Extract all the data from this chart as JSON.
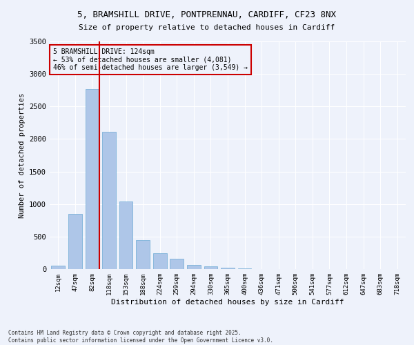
{
  "title_line1": "5, BRAMSHILL DRIVE, PONTPRENNAU, CARDIFF, CF23 8NX",
  "title_line2": "Size of property relative to detached houses in Cardiff",
  "xlabel": "Distribution of detached houses by size in Cardiff",
  "ylabel": "Number of detached properties",
  "categories": [
    "12sqm",
    "47sqm",
    "82sqm",
    "118sqm",
    "153sqm",
    "188sqm",
    "224sqm",
    "259sqm",
    "294sqm",
    "330sqm",
    "365sqm",
    "400sqm",
    "436sqm",
    "471sqm",
    "506sqm",
    "541sqm",
    "577sqm",
    "612sqm",
    "647sqm",
    "683sqm",
    "718sqm"
  ],
  "values": [
    55,
    850,
    2770,
    2110,
    1040,
    450,
    240,
    160,
    65,
    45,
    20,
    10,
    5,
    2,
    1,
    0,
    0,
    0,
    0,
    0,
    0
  ],
  "bar_color": "#aec6e8",
  "bar_edge_color": "#6aaad4",
  "vline_x_pos": 2.45,
  "vline_color": "#cc0000",
  "annotation_title": "5 BRAMSHILL DRIVE: 124sqm",
  "annotation_line2": "← 53% of detached houses are smaller (4,081)",
  "annotation_line3": "46% of semi-detached houses are larger (3,549) →",
  "annotation_box_color": "#cc0000",
  "background_color": "#eef2fb",
  "grid_color": "#ffffff",
  "ylim": [
    0,
    3500
  ],
  "yticks": [
    0,
    500,
    1000,
    1500,
    2000,
    2500,
    3000,
    3500
  ],
  "footnote1": "Contains HM Land Registry data © Crown copyright and database right 2025.",
  "footnote2": "Contains public sector information licensed under the Open Government Licence v3.0."
}
